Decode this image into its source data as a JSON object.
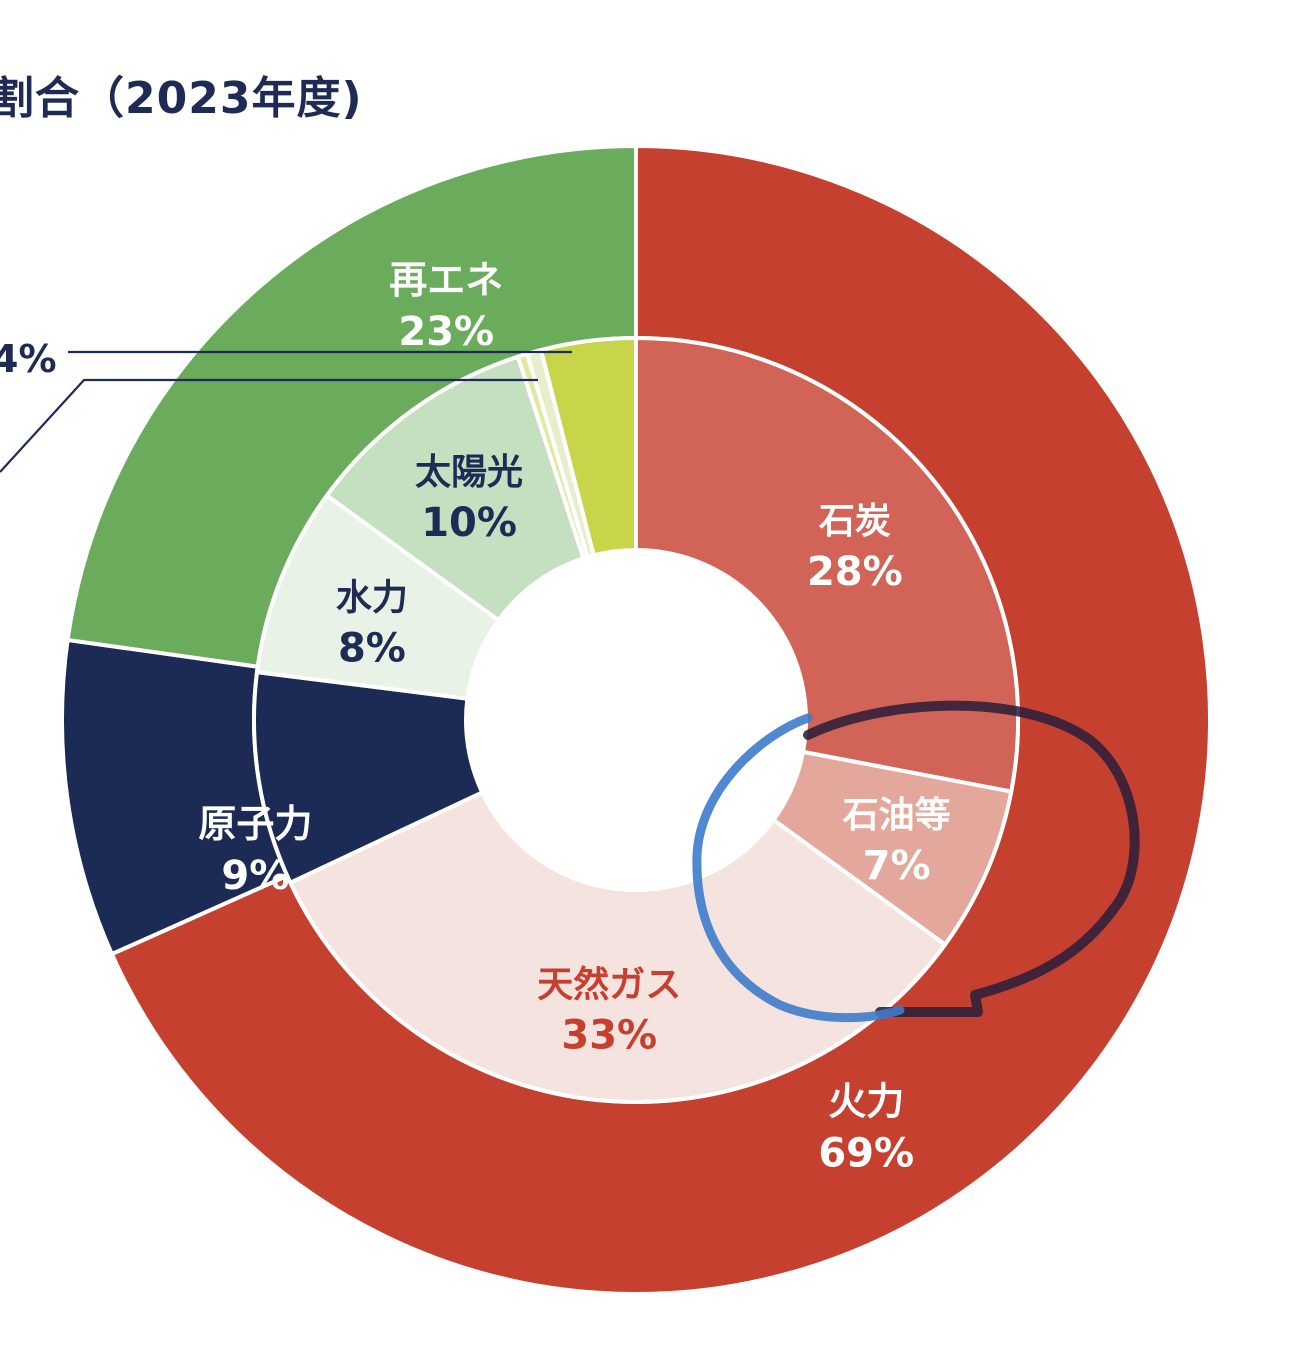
{
  "chart_data": {
    "type": "pie",
    "title": "割合（2023年度)",
    "outer_ring": [
      {
        "label": "火力",
        "value": 69,
        "value_label": "69%",
        "color": "#c5402f",
        "label_color": "#ffffff"
      },
      {
        "label": "原子力",
        "value": 9,
        "value_label": "9%",
        "color": "#1c2a56",
        "label_color": "#ffffff"
      },
      {
        "label": "再エネ",
        "value": 23,
        "value_label": "23%",
        "color": "#6aab5c",
        "label_color": "#ffffff"
      }
    ],
    "inner_ring": [
      {
        "label": "石炭",
        "value": 28,
        "value_label": "28%",
        "color": "#d26357",
        "label_color": "#ffffff"
      },
      {
        "label": "石油等",
        "value": 7,
        "value_label": "7%",
        "color": "#e3a89b",
        "label_color": "#ffffff"
      },
      {
        "label": "天然ガス",
        "value": 33,
        "value_label": "33%",
        "color": "#f5e3df",
        "label_color": "#c5402f"
      },
      {
        "label": "原子力",
        "value": 9,
        "value_label": "9%",
        "color": "#1c2a56",
        "label_color": "#ffffff"
      },
      {
        "label": "水力",
        "value": 8,
        "value_label": "8%",
        "color": "#e9f2e6",
        "label_color": "#1e2b55"
      },
      {
        "label": "太陽光",
        "value": 10,
        "value_label": "10%",
        "color": "#c5dfc1",
        "label_color": "#1e2b55"
      },
      {
        "label": "",
        "value": 0.4,
        "value_label": "",
        "color": "#ddeaa0",
        "label_color": "#1e2b55"
      },
      {
        "label": "",
        "value": 0.6,
        "value_label": "",
        "color": "#e8eecb",
        "label_color": "#1e2b55"
      },
      {
        "label": "",
        "value": 4,
        "value_label": "",
        "color": "#c8d44a",
        "label_color": "#1e2b55"
      }
    ],
    "callout_text": "4%",
    "annotations": [
      {
        "type": "freehand-ellipse",
        "color": "#2d1f3a",
        "around": "石油等"
      },
      {
        "type": "freehand-ellipse",
        "color": "#3d7bcc",
        "around": "石油等"
      }
    ]
  }
}
